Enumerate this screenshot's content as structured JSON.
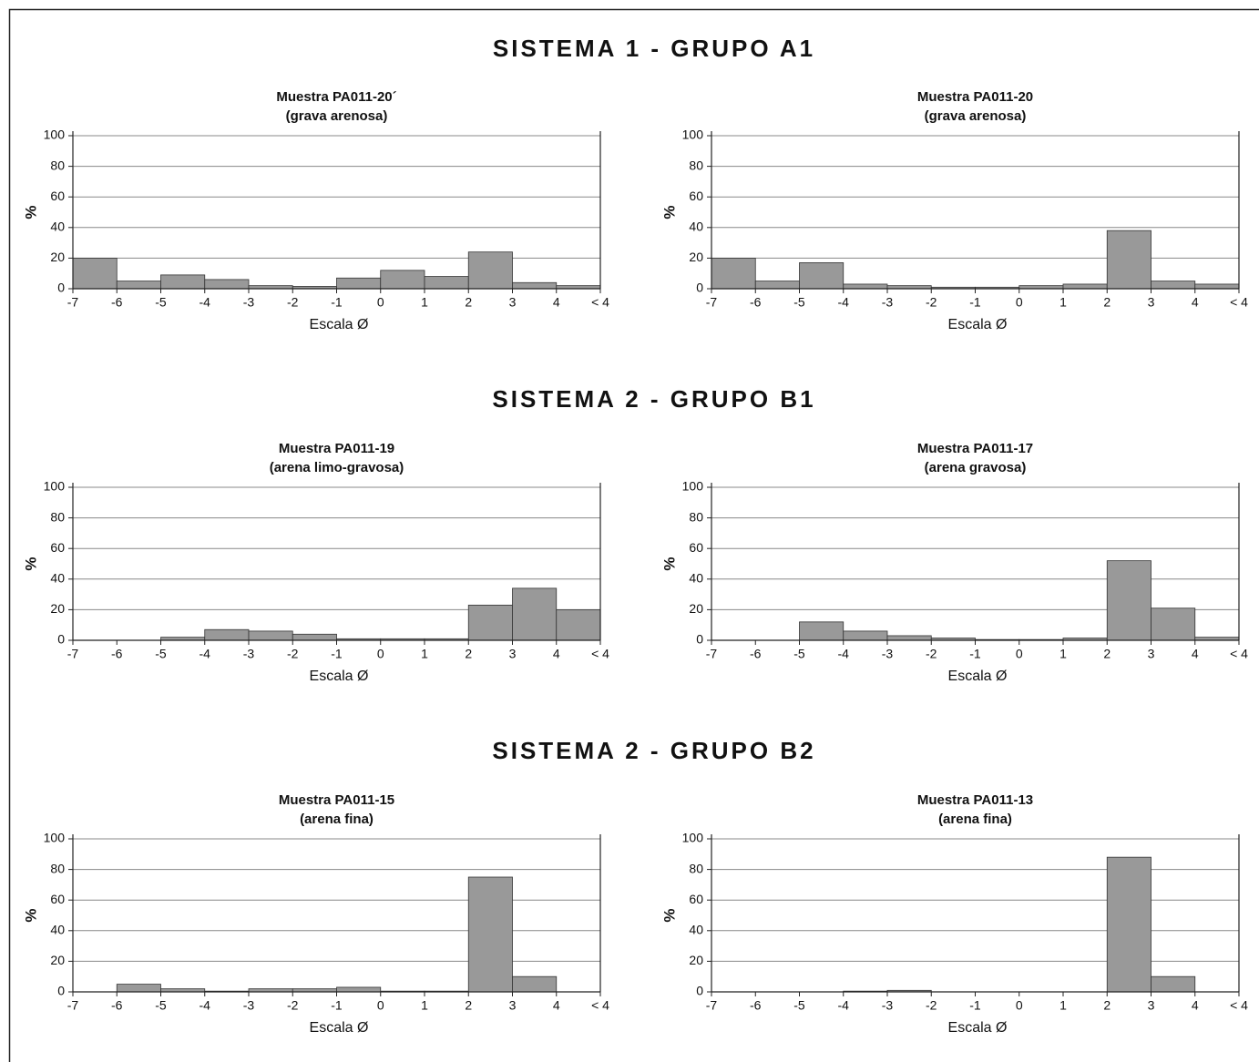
{
  "sections": [
    "SISTEMA 1 - GRUPO A1",
    "SISTEMA 2 - GRUPO B1",
    "SISTEMA 2 - GRUPO B2"
  ],
  "chart_data": [
    {
      "type": "histogram",
      "title": "Muestra PA011-20´",
      "subtitle": "(grava arenosa)",
      "xlabel": "Escala Ø",
      "ylabel": "%",
      "bins": [
        -7,
        -6,
        -5,
        -4,
        -3,
        -2,
        -1,
        0,
        1,
        2,
        3,
        4,
        5
      ],
      "values": [
        20,
        5,
        9,
        6,
        2,
        1.5,
        7,
        12,
        8,
        24,
        4,
        2
      ],
      "color": "#999999",
      "xlim": [
        -7,
        5
      ],
      "xticks": [
        -7,
        -6,
        -5,
        -4,
        -3,
        -2,
        -1,
        0,
        1,
        2,
        3,
        4,
        {
          "value": 5,
          "label": "< 4"
        }
      ],
      "ylim": [
        0,
        100
      ],
      "yticks": [
        0,
        20,
        40,
        60,
        80,
        100
      ],
      "grid": true
    },
    {
      "type": "histogram",
      "title": "Muestra PA011-20",
      "subtitle": "(grava arenosa)",
      "xlabel": "Escala Ø",
      "ylabel": "%",
      "bins": [
        -7,
        -6,
        -5,
        -4,
        -3,
        -2,
        -1,
        0,
        1,
        2,
        3,
        4,
        5
      ],
      "values": [
        20,
        5,
        17,
        3,
        2,
        1,
        1,
        2,
        3,
        38,
        5,
        3
      ],
      "color": "#999999",
      "xlim": [
        -7,
        5
      ],
      "xticks": [
        -7,
        -6,
        -5,
        -4,
        -3,
        -2,
        -1,
        0,
        1,
        2,
        3,
        4,
        {
          "value": 5,
          "label": "< 4"
        }
      ],
      "ylim": [
        0,
        100
      ],
      "yticks": [
        0,
        20,
        40,
        60,
        80,
        100
      ],
      "grid": true
    },
    {
      "type": "histogram",
      "title": "Muestra PA011-19",
      "subtitle": "(arena limo-gravosa)",
      "xlabel": "Escala Ø",
      "ylabel": "%",
      "bins": [
        -7,
        -6,
        -5,
        -4,
        -3,
        -2,
        -1,
        0,
        1,
        2,
        3,
        4,
        5
      ],
      "values": [
        0,
        0,
        2,
        7,
        6,
        4,
        1,
        1,
        1,
        23,
        34,
        20
      ],
      "color": "#999999",
      "xlim": [
        -7,
        5
      ],
      "xticks": [
        -7,
        -6,
        -5,
        -4,
        -3,
        -2,
        -1,
        0,
        1,
        2,
        3,
        4,
        {
          "value": 5,
          "label": "< 4"
        }
      ],
      "ylim": [
        0,
        100
      ],
      "yticks": [
        0,
        20,
        40,
        60,
        80,
        100
      ],
      "grid": true
    },
    {
      "type": "histogram",
      "title": "Muestra PA011-17",
      "subtitle": "(arena gravosa)",
      "xlabel": "Escala Ø",
      "ylabel": "%",
      "bins": [
        -7,
        -6,
        -5,
        -4,
        -3,
        -2,
        -1,
        0,
        1,
        2,
        3,
        4,
        5
      ],
      "values": [
        0,
        0,
        12,
        6,
        3,
        1.5,
        0.5,
        0.5,
        1.5,
        52,
        21,
        2
      ],
      "color": "#999999",
      "xlim": [
        -7,
        5
      ],
      "xticks": [
        -7,
        -6,
        -5,
        -4,
        -3,
        -2,
        -1,
        0,
        1,
        2,
        3,
        4,
        {
          "value": 5,
          "label": "< 4"
        }
      ],
      "ylim": [
        0,
        100
      ],
      "yticks": [
        0,
        20,
        40,
        60,
        80,
        100
      ],
      "grid": true
    },
    {
      "type": "histogram",
      "title": "Muestra PA011-15",
      "subtitle": "(arena fina)",
      "xlabel": "Escala Ø",
      "ylabel": "%",
      "bins": [
        -7,
        -6,
        -5,
        -4,
        -3,
        -2,
        -1,
        0,
        1,
        2,
        3,
        4,
        5
      ],
      "values": [
        0,
        5,
        2,
        0.5,
        2,
        2,
        3,
        0.5,
        0.5,
        75,
        10,
        0
      ],
      "color": "#999999",
      "xlim": [
        -7,
        5
      ],
      "xticks": [
        -7,
        -6,
        -5,
        -4,
        -3,
        -2,
        -1,
        0,
        1,
        2,
        3,
        4,
        {
          "value": 5,
          "label": "< 4"
        }
      ],
      "ylim": [
        0,
        100
      ],
      "yticks": [
        0,
        20,
        40,
        60,
        80,
        100
      ],
      "grid": true
    },
    {
      "type": "histogram",
      "title": "Muestra PA011-13",
      "subtitle": "(arena fina)",
      "xlabel": "Escala Ø",
      "ylabel": "%",
      "bins": [
        -7,
        -6,
        -5,
        -4,
        -3,
        -2,
        -1,
        0,
        1,
        2,
        3,
        4,
        5
      ],
      "values": [
        0,
        0,
        0,
        0.5,
        1,
        0,
        0,
        0,
        0,
        88,
        10,
        0
      ],
      "color": "#999999",
      "xlim": [
        -7,
        5
      ],
      "xticks": [
        -7,
        -6,
        -5,
        -4,
        -3,
        -2,
        -1,
        0,
        1,
        2,
        3,
        4,
        {
          "value": 5,
          "label": "< 4"
        }
      ],
      "ylim": [
        0,
        100
      ],
      "yticks": [
        0,
        20,
        40,
        60,
        80,
        100
      ],
      "grid": true
    }
  ]
}
